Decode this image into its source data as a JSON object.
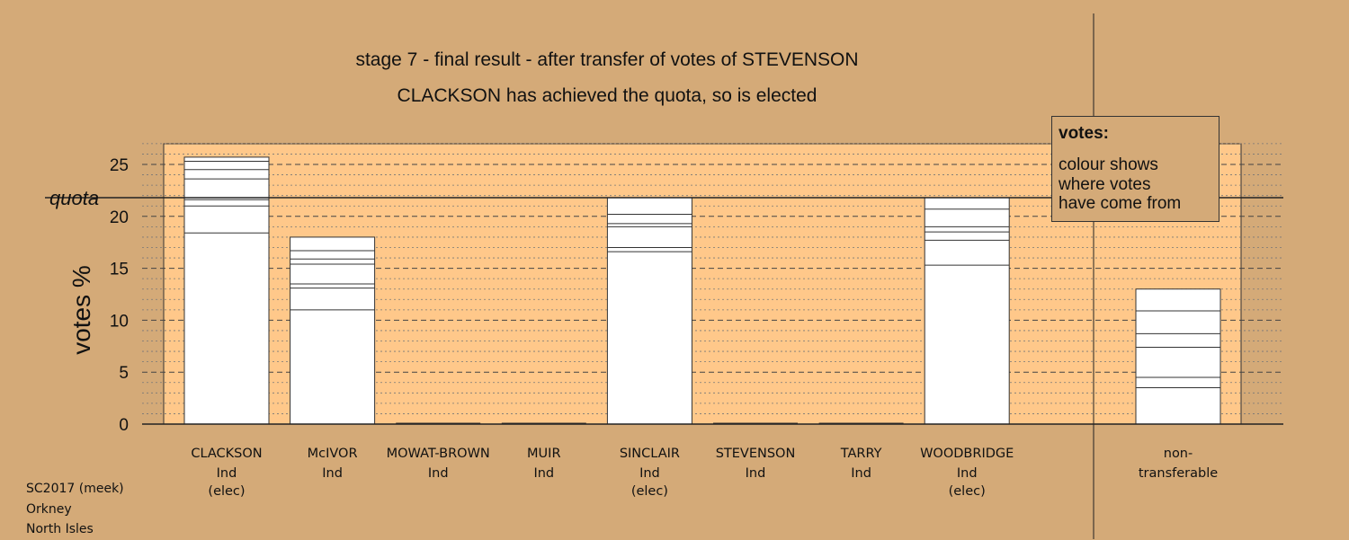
{
  "chart_data": {
    "type": "bar",
    "title": "stage 7 - final result - after transfer of votes of STEVENSON",
    "subtitle": "CLACKSON has achieved the quota, so is elected",
    "ylabel": "votes %",
    "ylim": [
      0,
      27
    ],
    "yticks": [
      0,
      5,
      10,
      15,
      20,
      25
    ],
    "quota": 21.8,
    "quota_label": "quota",
    "grid": "horizontal dashed",
    "categories": [
      {
        "name": "CLACKSON",
        "party": "Ind",
        "status": "(elec)"
      },
      {
        "name": "McIVOR",
        "party": "Ind",
        "status": ""
      },
      {
        "name": "MOWAT-BROWN",
        "party": "Ind",
        "status": ""
      },
      {
        "name": "MUIR",
        "party": "Ind",
        "status": ""
      },
      {
        "name": "SINCLAIR",
        "party": "Ind",
        "status": "(elec)"
      },
      {
        "name": "STEVENSON",
        "party": "Ind",
        "status": ""
      },
      {
        "name": "TARRY",
        "party": "Ind",
        "status": ""
      },
      {
        "name": "WOODBRIDGE",
        "party": "Ind",
        "status": "(elec)"
      }
    ],
    "values": [
      25.7,
      18.0,
      0,
      0,
      21.8,
      0,
      0,
      21.8
    ],
    "segment_boundaries": [
      [
        18.4,
        21.0,
        21.6,
        23.6,
        24.5,
        25.3
      ],
      [
        11.0,
        13.1,
        13.5,
        15.4,
        15.9,
        16.7
      ],
      [],
      [],
      [
        16.6,
        17.0,
        19.0,
        19.3,
        20.2
      ],
      [],
      [],
      [
        15.3,
        17.7,
        18.5,
        19.0,
        20.7
      ]
    ],
    "nontransferable": {
      "label_line1": "non-",
      "label_line2": "transferable",
      "value": 13.0,
      "segment_boundaries": [
        3.5,
        4.5,
        7.4,
        8.7,
        10.9
      ]
    }
  },
  "legend": {
    "title": "votes:",
    "lines": [
      "colour shows",
      "where votes",
      "have come from"
    ]
  },
  "footer": {
    "line1": "SC2017 (meek)",
    "line2": "Orkney",
    "line3": "North Isles"
  },
  "colors": {
    "background": "#d4aa78",
    "plot_area": "#ffc88a",
    "bar_fill": "#ffffff",
    "line": "#333333"
  }
}
